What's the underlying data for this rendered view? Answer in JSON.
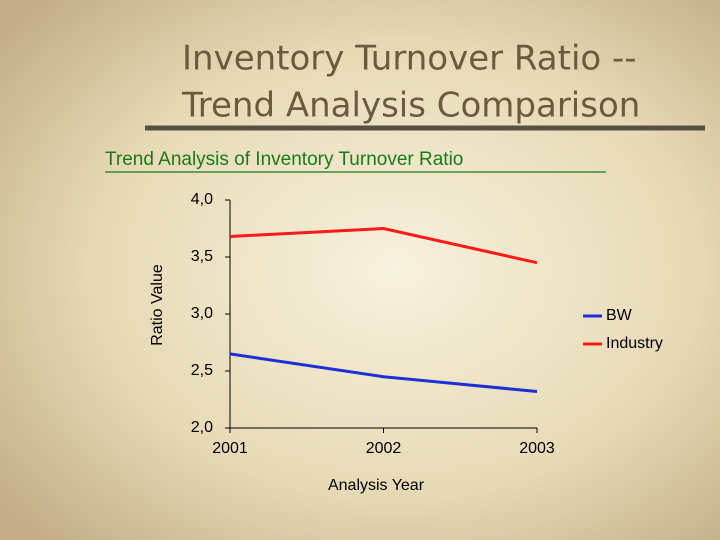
{
  "slide": {
    "title_lines": [
      "Inventory Turnover Ratio --",
      "Trend Analysis Comparison"
    ]
  },
  "chart_data": {
    "type": "line",
    "title": "Trend Analysis of Inventory Turnover Ratio",
    "x": [
      2001,
      2002,
      2003
    ],
    "series": [
      {
        "name": "BW",
        "color": "#1f2fd8",
        "values": [
          2.65,
          2.45,
          2.32
        ]
      },
      {
        "name": "Industry",
        "color": "#ff1a1a",
        "values": [
          3.68,
          3.75,
          3.45
        ]
      }
    ],
    "xlim": [
      2001,
      2003
    ],
    "xticks": [
      2001,
      2002,
      2003
    ],
    "ylim": [
      2.0,
      4.0
    ],
    "yticks": [
      {
        "value": 2.0,
        "label": "2,0"
      },
      {
        "value": 2.5,
        "label": "2,5"
      },
      {
        "value": 3.0,
        "label": "3,0"
      },
      {
        "value": 3.5,
        "label": "3,5"
      },
      {
        "value": 4.0,
        "label": "4,0"
      }
    ],
    "xlabel": "Analysis Year",
    "ylabel": "Ratio Value",
    "legend": "right"
  }
}
